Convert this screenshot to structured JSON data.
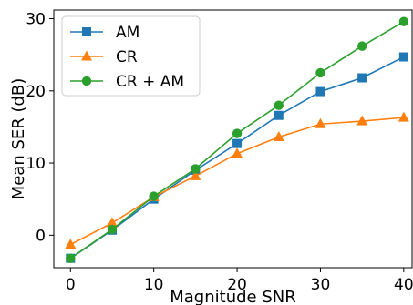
{
  "chart_data": {
    "type": "line",
    "xlabel": "Magnitude SNR",
    "ylabel": "Mean SER (dB)",
    "x": [
      0,
      5,
      10,
      15,
      20,
      25,
      30,
      35,
      40
    ],
    "xlim": [
      -2,
      41
    ],
    "ylim": [
      -4.5,
      31.2
    ],
    "xticks": [
      0,
      10,
      20,
      30,
      40
    ],
    "yticks": [
      0,
      10,
      20,
      30
    ],
    "grid": false,
    "legend_position": "top-left",
    "series": [
      {
        "name": "AM",
        "color": "#1f77b4",
        "marker": "square",
        "values": [
          -3.2,
          0.7,
          5.0,
          9.0,
          12.7,
          16.6,
          19.9,
          21.8,
          24.7
        ]
      },
      {
        "name": "CR",
        "color": "#ff7f0e",
        "marker": "triangle",
        "values": [
          -1.3,
          1.7,
          5.3,
          8.2,
          11.3,
          13.6,
          15.4,
          15.8,
          16.3
        ]
      },
      {
        "name": "CR + AM",
        "color": "#2ca02c",
        "marker": "circle",
        "values": [
          -3.2,
          0.8,
          5.4,
          9.2,
          14.1,
          18.0,
          22.5,
          26.2,
          29.6
        ]
      }
    ]
  }
}
